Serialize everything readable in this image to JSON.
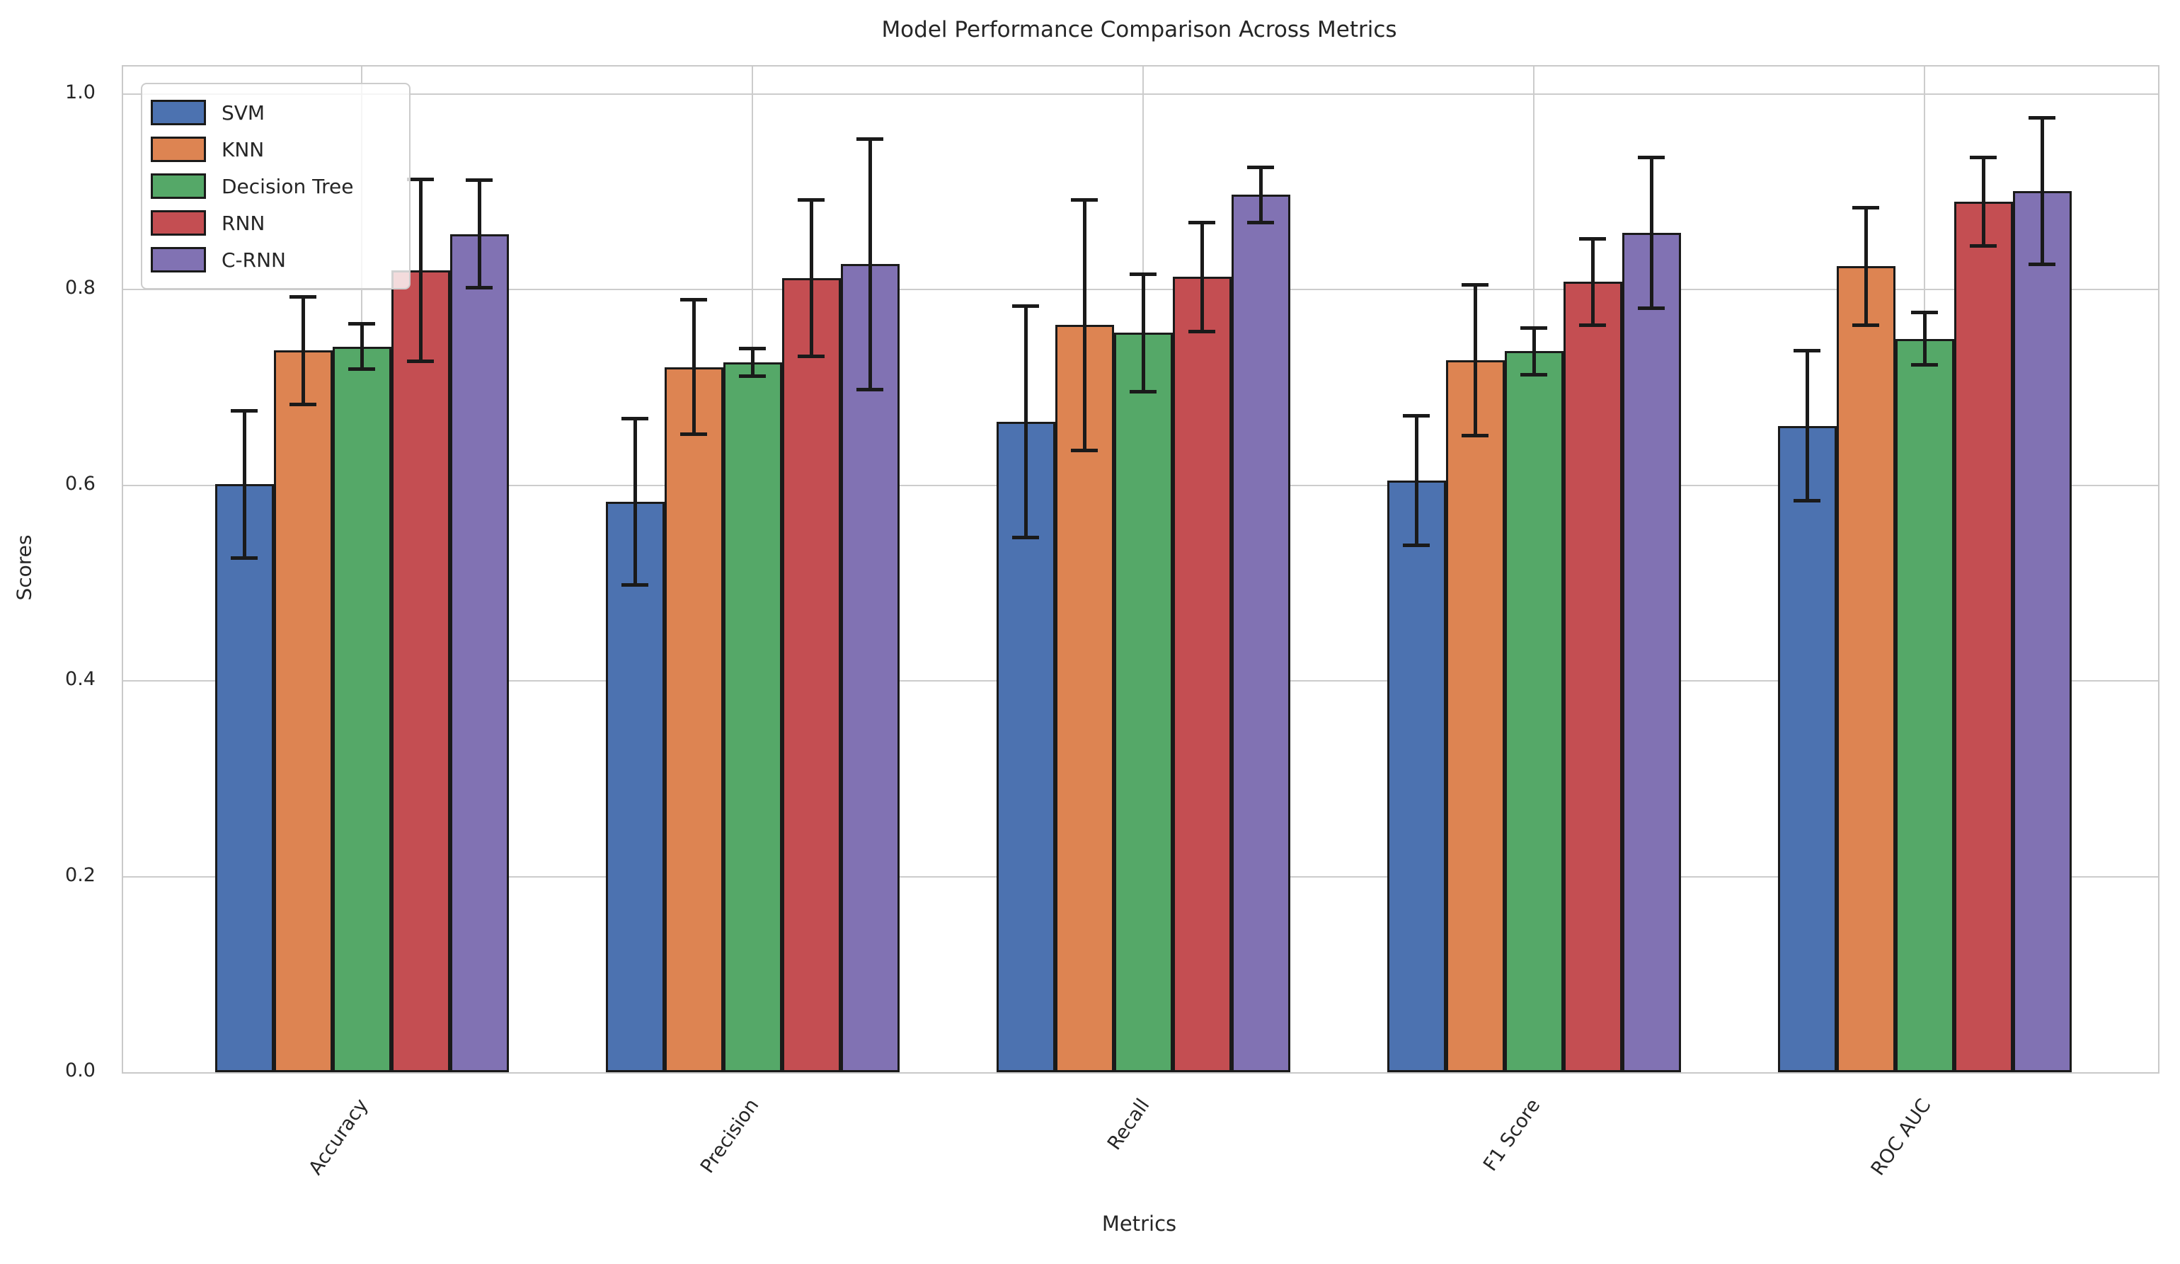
{
  "title": "Model Performance Comparison Across Metrics",
  "chart_data": {
    "type": "bar",
    "title": "Model Performance Comparison Across Metrics",
    "xlabel": "Metrics",
    "ylabel": "Scores",
    "categories": [
      "Accuracy",
      "Precision",
      "Recall",
      "F1 Score",
      "ROC AUC"
    ],
    "series": [
      {
        "name": "SVM",
        "color": "#4C72B0",
        "values": [
          0.601,
          0.583,
          0.665,
          0.605,
          0.661
        ],
        "errors": [
          0.075,
          0.085,
          0.118,
          0.066,
          0.077
        ]
      },
      {
        "name": "KNN",
        "color": "#DD8452",
        "values": [
          0.738,
          0.721,
          0.764,
          0.728,
          0.824
        ],
        "errors": [
          0.055,
          0.069,
          0.128,
          0.077,
          0.06
        ]
      },
      {
        "name": "Decision Tree",
        "color": "#55A868",
        "values": [
          0.742,
          0.726,
          0.756,
          0.737,
          0.75
        ],
        "errors": [
          0.023,
          0.014,
          0.06,
          0.024,
          0.027
        ]
      },
      {
        "name": "RNN",
        "color": "#C44E52",
        "values": [
          0.82,
          0.812,
          0.813,
          0.808,
          0.89
        ],
        "errors": [
          0.093,
          0.08,
          0.056,
          0.044,
          0.045
        ]
      },
      {
        "name": "C-RNN",
        "color": "#8172B3",
        "values": [
          0.857,
          0.826,
          0.897,
          0.858,
          0.901
        ],
        "errors": [
          0.055,
          0.128,
          0.028,
          0.077,
          0.075
        ]
      }
    ],
    "ylim": [
      0.0,
      1.028
    ],
    "yticks": [
      "0.0",
      "0.2",
      "0.4",
      "0.6",
      "0.8",
      "1.0"
    ],
    "grid": true,
    "legend_position": "upper left",
    "error_bars": "symmetric, black with caps"
  },
  "style": {
    "grid_color": "#cccccc",
    "spine_color": "#c9c9c9",
    "bar_edge_color": "#1a1a1a",
    "error_bar_color": "#1a1a1a",
    "text_color": "#262626",
    "legend_background": "rgba(255,255,255,0.8)"
  }
}
